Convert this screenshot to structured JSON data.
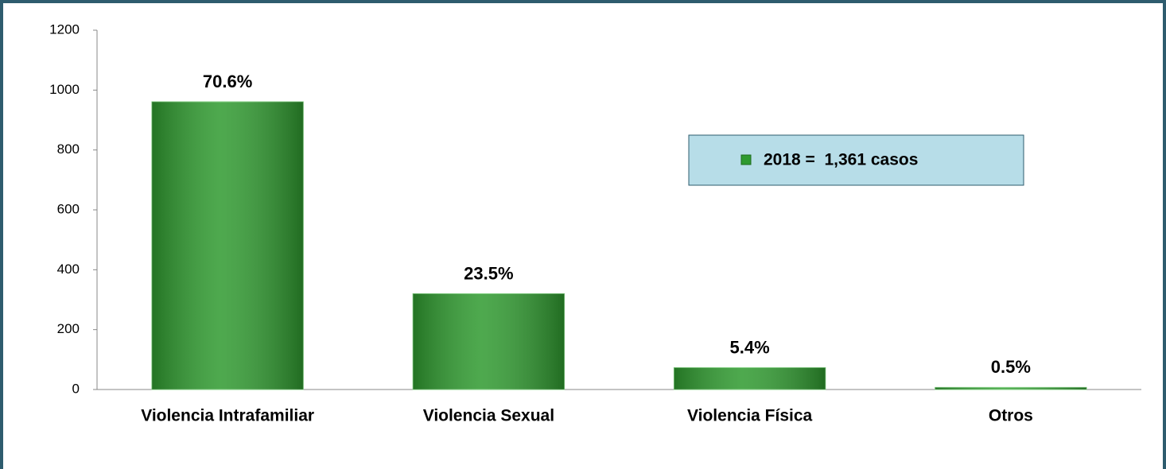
{
  "chart_data": {
    "type": "bar",
    "categories": [
      "Violencia Intrafamiliar",
      "Violencia Sexual",
      "Violencia Física",
      "Otros"
    ],
    "series": [
      {
        "name": "2018 =  1,361 casos",
        "color": "#2f9a2f",
        "values": [
          961,
          320,
          73,
          7
        ],
        "value_labels": [
          "70.6%",
          "23.5%",
          "5.4%",
          "0.5%"
        ]
      }
    ],
    "ylim": [
      0,
      1200
    ],
    "yticks": [
      0,
      200,
      400,
      600,
      800,
      1000,
      1200
    ],
    "grid": false
  }
}
